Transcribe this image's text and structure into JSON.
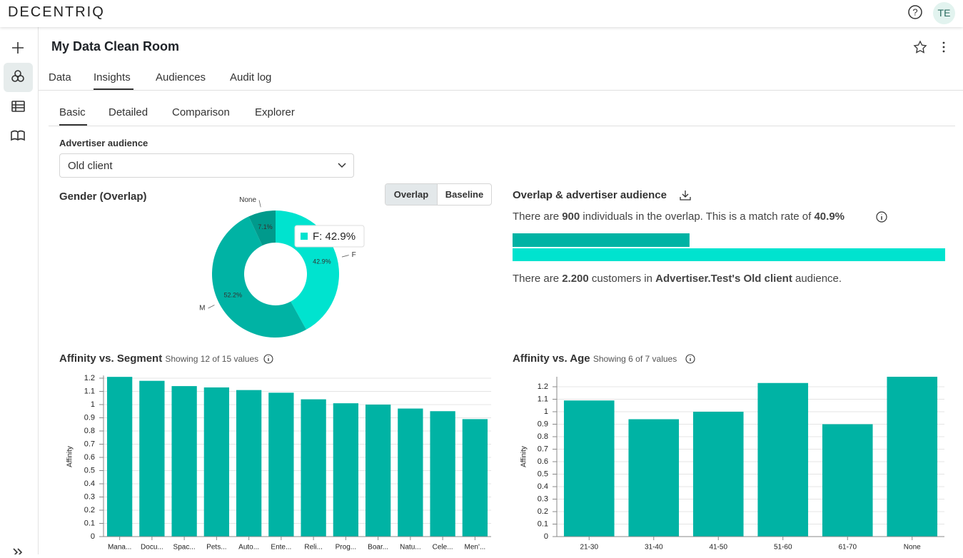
{
  "header": {
    "brand": "DECENTRIQ",
    "avatar": "TE"
  },
  "page": {
    "title": "My Data Clean Room",
    "tabs": [
      "Data",
      "Insights",
      "Audiences",
      "Audit log"
    ],
    "subtabs": [
      "Basic",
      "Detailed",
      "Comparison",
      "Explorer"
    ],
    "audience_label": "Advertiser audience",
    "audience_value": "Old client",
    "toggle": [
      "Overlap",
      "Baseline"
    ]
  },
  "chart_data": [
    {
      "type": "donut",
      "title": "Gender (Overlap)",
      "categories": [
        "F",
        "M",
        "None"
      ],
      "values": [
        42.9,
        52.2,
        7.1
      ],
      "value_labels": [
        "42.9%",
        "52.2%",
        "7.1%"
      ],
      "colors": [
        "#00e3cf",
        "#00b3a4",
        "#009a8c"
      ],
      "tooltip": "F: 42.9%"
    },
    {
      "type": "bar",
      "title": "Affinity vs. Segment",
      "subtitle": "Showing 12 of 15 values",
      "ylabel": "Affinity",
      "categories": [
        "Mana...",
        "Docu...",
        "Spac...",
        "Pets...",
        "Auto...",
        "Ente...",
        "Reli...",
        "Prog...",
        "Boar...",
        "Natu...",
        "Cele...",
        "Men'..."
      ],
      "values": [
        1.21,
        1.18,
        1.14,
        1.13,
        1.11,
        1.09,
        1.04,
        1.01,
        1.0,
        0.97,
        0.95,
        0.89
      ],
      "color": "#00b3a4",
      "ylim": [
        0,
        1.22
      ],
      "yticks": [
        0,
        0.1,
        0.2,
        0.3,
        0.4,
        0.5,
        0.6,
        0.7,
        0.8,
        0.9,
        1,
        1.1,
        1.2
      ],
      "grid": true
    },
    {
      "type": "bar",
      "title": "Affinity vs. Age",
      "subtitle": "Showing 6 of 7 values",
      "ylabel": "Affinity",
      "categories": [
        "21-30",
        "31-40",
        "41-50",
        "51-60",
        "61-70",
        "None"
      ],
      "values": [
        1.09,
        0.94,
        1.0,
        1.23,
        0.9,
        1.28
      ],
      "color": "#00b3a4",
      "ylim": [
        0,
        1.28
      ],
      "yticks": [
        0,
        0.1,
        0.2,
        0.3,
        0.4,
        0.5,
        0.6,
        0.7,
        0.8,
        0.9,
        1,
        1.1,
        1.2
      ],
      "grid": true
    },
    {
      "type": "overlap",
      "title": "Overlap & advertiser audience",
      "values": [
        900,
        2200
      ],
      "value_labels": [
        "900",
        "2.200"
      ],
      "colors": [
        "#00b3a4",
        "#00e3cf"
      ],
      "match_rate": "40.9%",
      "sentence_1_parts": [
        "There are ",
        " individuals in the overlap. This is a match rate of "
      ],
      "sentence_2_parts": [
        "There are ",
        " customers in ",
        " audience."
      ],
      "audience_name": "Advertiser.Test's Old client"
    }
  ]
}
